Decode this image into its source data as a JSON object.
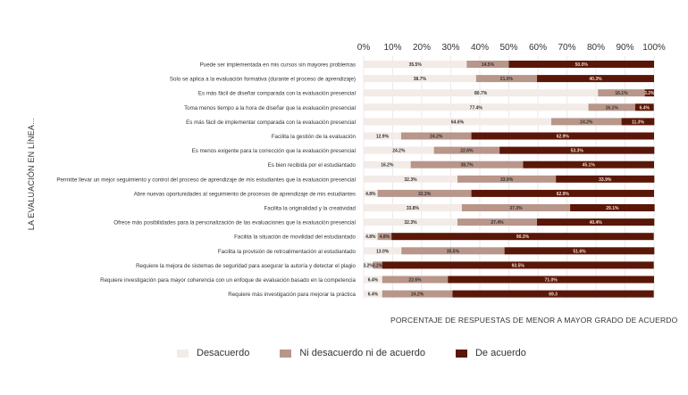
{
  "chart_data": {
    "type": "bar",
    "orientation": "horizontal",
    "stacked": true,
    "ylabel": "LA EVALUACIÓN EN LÍNEA...",
    "xlabel": "PORCENTAJE DE RESPUESTAS DE MENOR A MAYOR GRADO DE ACUERDO",
    "xlim": [
      0,
      100
    ],
    "xticks": [
      "0%",
      "10%",
      "20%",
      "30%",
      "40%",
      "50%",
      "60%",
      "70%",
      "80%",
      "90%",
      "100%"
    ],
    "legend_position": "bottom",
    "colors": [
      "#f3ebe7",
      "#b8968a",
      "#5a1708"
    ],
    "series_names": [
      "Desacuerdo",
      "Ni desacuerdo ni de acuerdo",
      "De acuerdo"
    ],
    "categories": [
      "Puede ser implementada en mis cursos sin mayores problemas",
      "Solo se aplica a la evaluación formativa (durante el proceso de aprendizaje)",
      "Es más fácil de diseñar comparada con la evaluación presencial",
      "Toma menos tiempo a la hora de diseñar que la evaluación presencial",
      "Es más fácil de implementar comparada con la evaluación presencial",
      "Facilita la gestión de la evaluación",
      "Es menos exigente para la corrección que la evaluación presencial",
      "Es bien recibida por el estudiantado",
      "Permitte llevar un mejor seguimiento y control del proceso de aprendizaje de mis estudiantes que la evaluación presencial",
      "Abre nuevas oportunidades al seguimiento de procesos de aprendizaje de mis estudiantes",
      "Facilita la originalidad y la creatividad",
      "Ofrece más posibilidades para la personalización de las evaluaciones que la evaluación presencial",
      "Facilita la situación de movilidad del estudiantado",
      "Facilita la provisión de retroalimentación al estudiantado",
      "Requiere la mejora de sistemas de seguridad para asegurar la autoría y detectar el plagio",
      "Requiere investigación para mayor coherencia con un enfoque de evaluación basado en la competencia",
      "Requiere más investigación para mejorar la práctica"
    ],
    "series": [
      {
        "name": "Desacuerdo",
        "values": [
          35.5,
          38.7,
          80.7,
          77.4,
          64.6,
          12.9,
          24.2,
          16.2,
          32.3,
          4.8,
          33.8,
          32.3,
          4.8,
          13.0,
          3.2,
          6.4,
          6.4
        ]
      },
      {
        "name": "Ni desacuerdo ni de acuerdo",
        "values": [
          14.5,
          21.0,
          16.1,
          16.1,
          24.2,
          24.2,
          22.6,
          38.7,
          33.9,
          32.3,
          37.3,
          27.4,
          4.8,
          35.5,
          3.2,
          22.6,
          24.2
        ]
      },
      {
        "name": "De acuerdo",
        "values": [
          50.0,
          40.3,
          3.2,
          6.4,
          11.3,
          62.9,
          53.3,
          45.1,
          33.9,
          62.9,
          29.1,
          40.4,
          90.3,
          51.6,
          93.5,
          71.0,
          69.3
        ]
      }
    ],
    "data_labels": [
      [
        "35.5%",
        "14.5%",
        "50.0%"
      ],
      [
        "38.7%",
        "21.0%",
        "40.3%"
      ],
      [
        "80.7%",
        "16.1%",
        "3.2%"
      ],
      [
        "77.4%",
        "16.1%",
        "6.4%"
      ],
      [
        "64.6%",
        "24.2%",
        "11.3%"
      ],
      [
        "12.9%",
        "24.2%",
        "62.9%"
      ],
      [
        "24.2%",
        "22.6%",
        "53.3%"
      ],
      [
        "16.2%",
        "38.7%",
        "45.1%"
      ],
      [
        "32.3%",
        "33.9%",
        "33.9%"
      ],
      [
        "4.8%",
        "32.3%",
        "62.9%"
      ],
      [
        "33.8%",
        "37.3%",
        "29.1%"
      ],
      [
        "32.3%",
        "27.4%",
        "40.4%"
      ],
      [
        "4.8%",
        "4.8%",
        "90.3%"
      ],
      [
        "13.0%",
        "35.5%",
        "51.6%"
      ],
      [
        "3.2%",
        "3.2%",
        "93.5%"
      ],
      [
        "6.4%",
        "22.6%",
        "71.0%"
      ],
      [
        "6.4%",
        "24.2%",
        "69.3"
      ]
    ]
  }
}
